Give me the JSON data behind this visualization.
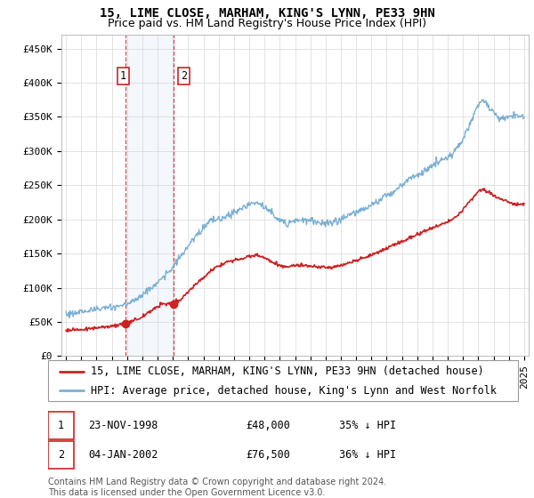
{
  "title": "15, LIME CLOSE, MARHAM, KING'S LYNN, PE33 9HN",
  "subtitle": "Price paid vs. HM Land Registry's House Price Index (HPI)",
  "ylabel_ticks": [
    "£0",
    "£50K",
    "£100K",
    "£150K",
    "£200K",
    "£250K",
    "£300K",
    "£350K",
    "£400K",
    "£450K"
  ],
  "ytick_values": [
    0,
    50000,
    100000,
    150000,
    200000,
    250000,
    300000,
    350000,
    400000,
    450000
  ],
  "xlim_start": 1994.7,
  "xlim_end": 2025.3,
  "ylim": [
    0,
    470000
  ],
  "background_color": "#ffffff",
  "grid_color": "#d8d8d8",
  "hpi_color": "#7ab0d4",
  "price_color": "#cc2222",
  "sale1_date": 1998.9,
  "sale1_price": 48000,
  "sale2_date": 2002.02,
  "sale2_price": 76500,
  "legend_label1": "15, LIME CLOSE, MARHAM, KING'S LYNN, PE33 9HN (detached house)",
  "legend_label2": "HPI: Average price, detached house, King's Lynn and West Norfolk",
  "annotation1_date": "23-NOV-1998",
  "annotation1_price": "£48,000",
  "annotation1_pct": "35% ↓ HPI",
  "annotation2_date": "04-JAN-2002",
  "annotation2_price": "£76,500",
  "annotation2_pct": "36% ↓ HPI",
  "footer": "Contains HM Land Registry data © Crown copyright and database right 2024.\nThis data is licensed under the Open Government Licence v3.0.",
  "title_fontsize": 10,
  "subtitle_fontsize": 9,
  "tick_fontsize": 8,
  "legend_fontsize": 8.5,
  "annot_fontsize": 8.5,
  "footer_fontsize": 7
}
